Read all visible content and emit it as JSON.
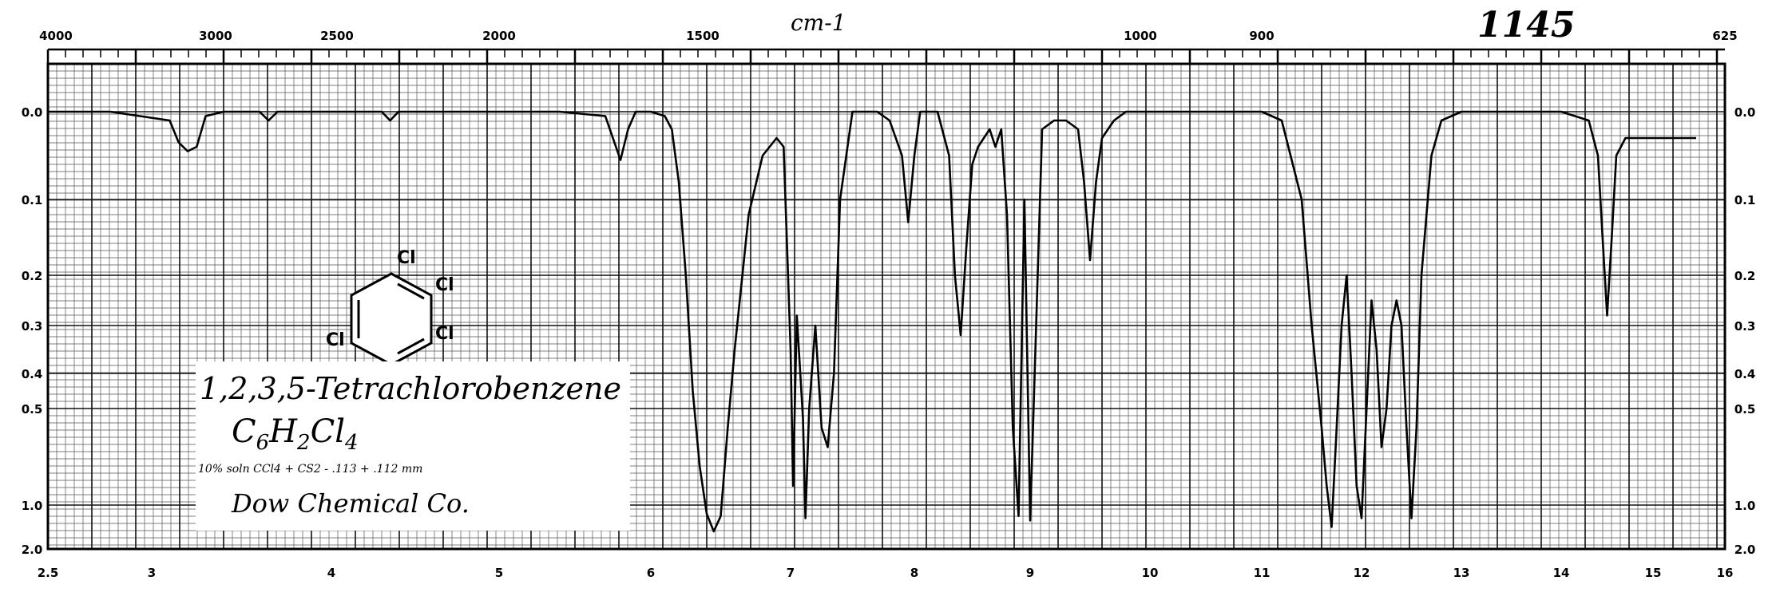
{
  "chart_data": {
    "type": "line",
    "title": "",
    "x_top_label": "cm-1",
    "x_top_ticks": [
      "4000",
      "3000",
      "2500",
      "2000",
      "1500",
      "1000",
      "900",
      "625"
    ],
    "x_bottom_ticks": [
      "2.5",
      "3",
      "4",
      "5",
      "6",
      "7",
      "8",
      "9",
      "10",
      "11",
      "12",
      "13",
      "14",
      "15",
      "16"
    ],
    "y_left_ticks": [
      "0.0",
      "0.1",
      "0.2",
      "0.3",
      "0.4",
      "0.5",
      "1.0",
      "2.0"
    ],
    "y_right_ticks": [
      "0.0",
      "0.1",
      "0.2",
      "0.3",
      "0.4",
      "0.5",
      "1.0",
      "2.0"
    ],
    "handwritten_number": "1145",
    "x_range_micron": [
      2.5,
      16
    ],
    "y_axis_type": "absorbance",
    "y_range": [
      0.0,
      2.0
    ],
    "grid": true,
    "series": [
      {
        "values_x": [
          2.5,
          2.8,
          3.1,
          3.15,
          3.2,
          3.25,
          3.3,
          3.4,
          3.6,
          3.65,
          3.7,
          4.0,
          4.3,
          4.35,
          4.4,
          4.6,
          5.0,
          5.4,
          5.7,
          5.75,
          5.8,
          5.85,
          5.9,
          6.0,
          6.1,
          6.15,
          6.2,
          6.25,
          6.3,
          6.35,
          6.4,
          6.45,
          6.5,
          6.55,
          6.6,
          6.7,
          6.8,
          6.9,
          6.95,
          7.0,
          7.02,
          7.05,
          7.1,
          7.12,
          7.15,
          7.2,
          7.25,
          7.3,
          7.35,
          7.4,
          7.5,
          7.6,
          7.7,
          7.8,
          7.9,
          7.95,
          8.0,
          8.05,
          8.1,
          8.2,
          8.3,
          8.35,
          8.4,
          8.45,
          8.5,
          8.55,
          8.6,
          8.65,
          8.7,
          8.75,
          8.8,
          8.85,
          8.9,
          8.95,
          9.0,
          9.05,
          9.1,
          9.2,
          9.3,
          9.4,
          9.45,
          9.5,
          9.55,
          9.6,
          9.7,
          9.8,
          10.0,
          10.2,
          10.5,
          10.8,
          11.0,
          11.2,
          11.4,
          11.5,
          11.6,
          11.65,
          11.7,
          11.75,
          11.8,
          11.85,
          11.9,
          11.95,
          12.0,
          12.05,
          12.1,
          12.15,
          12.2,
          12.25,
          12.3,
          12.35,
          12.4,
          12.45,
          12.5,
          12.55,
          12.6,
          12.7,
          12.8,
          13.0,
          13.5,
          14.0,
          14.3,
          14.4,
          14.45,
          14.5,
          14.55,
          14.6,
          14.7,
          14.8,
          15.0,
          15.3,
          15.6
        ],
        "values_y": [
          0.0,
          0.0,
          0.01,
          0.035,
          0.045,
          0.04,
          0.005,
          0.0,
          0.0,
          0.01,
          0.0,
          0.0,
          0.0,
          0.01,
          0.0,
          0.0,
          0.0,
          0.0,
          0.005,
          0.03,
          0.055,
          0.02,
          0.0,
          0.0,
          0.005,
          0.02,
          0.08,
          0.2,
          0.45,
          0.8,
          1.2,
          1.6,
          1.25,
          0.6,
          0.35,
          0.12,
          0.05,
          0.03,
          0.04,
          0.35,
          0.9,
          0.28,
          0.55,
          1.3,
          0.5,
          0.3,
          0.6,
          0.7,
          0.4,
          0.1,
          0.0,
          0.0,
          0.0,
          0.01,
          0.05,
          0.13,
          0.05,
          0.0,
          0.0,
          0.0,
          0.05,
          0.2,
          0.32,
          0.16,
          0.06,
          0.04,
          0.03,
          0.02,
          0.04,
          0.02,
          0.12,
          0.6,
          1.25,
          0.1,
          1.35,
          0.3,
          0.02,
          0.01,
          0.01,
          0.02,
          0.08,
          0.18,
          0.08,
          0.03,
          0.01,
          0.0,
          0.0,
          0.0,
          0.0,
          0.0,
          0.0,
          0.01,
          0.1,
          0.3,
          0.6,
          0.9,
          1.5,
          0.6,
          0.3,
          0.2,
          0.4,
          0.9,
          1.3,
          0.5,
          0.25,
          0.35,
          0.7,
          0.5,
          0.3,
          0.25,
          0.3,
          0.6,
          1.3,
          0.6,
          0.2,
          0.05,
          0.01,
          0.0,
          0.0,
          0.0,
          0.01,
          0.05,
          0.15,
          0.28,
          0.15,
          0.05,
          0.03,
          0.03,
          0.03,
          0.03,
          0.03
        ]
      }
    ]
  },
  "structure": {
    "substituents": [
      "Cl",
      "Cl",
      "Cl",
      "Cl"
    ]
  },
  "note": {
    "title": "1,2,3,5-Tetrachlorobenzene",
    "formula": "C6H2Cl4",
    "formula_parts": {
      "c": "C",
      "c_sub": "6",
      "h": "H",
      "h_sub": "2",
      "cl": "Cl",
      "cl_sub": "4"
    },
    "conditions": "10% soln CCl4 + CS2 - .113 + .112 mm",
    "source": "Dow Chemical Co."
  }
}
